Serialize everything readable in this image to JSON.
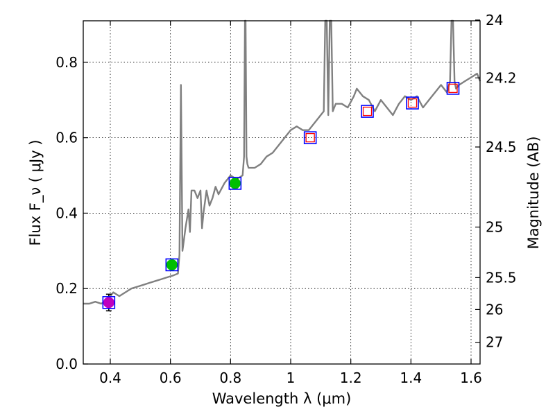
{
  "chart_data": {
    "type": "scatter",
    "xlabel": "Wavelength  λ (μm)",
    "ylabel": "Flux  F_ν  ( μJy )",
    "y2label": "Magnitude (AB)",
    "xlim": [
      0.31,
      1.63
    ],
    "ylim": [
      0.0,
      0.91
    ],
    "grid": true,
    "x_ticks": [
      {
        "value": 0.4,
        "label": "0.4"
      },
      {
        "value": 0.6,
        "label": "0.6"
      },
      {
        "value": 0.8,
        "label": "0.8"
      },
      {
        "value": 1.0,
        "label": "1"
      },
      {
        "value": 1.2,
        "label": "1.2"
      },
      {
        "value": 1.4,
        "label": "1.4"
      },
      {
        "value": 1.6,
        "label": "1.6"
      }
    ],
    "y_ticks": [
      {
        "value": 0.0,
        "label": "0.0"
      },
      {
        "value": 0.2,
        "label": "0.2"
      },
      {
        "value": 0.4,
        "label": "0.4"
      },
      {
        "value": 0.6,
        "label": "0.6"
      },
      {
        "value": 0.8,
        "label": "0.8"
      }
    ],
    "y2_ticks": [
      {
        "flux": 0.912,
        "label": "24"
      },
      {
        "flux": 0.7585,
        "label": "24.2"
      },
      {
        "flux": 0.5754,
        "label": "24.5"
      },
      {
        "flux": 0.3631,
        "label": "25"
      },
      {
        "flux": 0.2291,
        "label": "25.5"
      },
      {
        "flux": 0.1445,
        "label": "26"
      },
      {
        "flux": 0.0575,
        "label": "27"
      }
    ],
    "spectrum": {
      "color": "#808080",
      "x": [
        0.31,
        0.33,
        0.35,
        0.37,
        0.39,
        0.41,
        0.43,
        0.45,
        0.47,
        0.49,
        0.51,
        0.53,
        0.55,
        0.57,
        0.59,
        0.61,
        0.625,
        0.63,
        0.635,
        0.64,
        0.645,
        0.65,
        0.66,
        0.665,
        0.67,
        0.68,
        0.69,
        0.7,
        0.705,
        0.71,
        0.72,
        0.73,
        0.74,
        0.75,
        0.76,
        0.78,
        0.8,
        0.82,
        0.84,
        0.845,
        0.848,
        0.85,
        0.853,
        0.856,
        0.86,
        0.88,
        0.9,
        0.92,
        0.94,
        0.96,
        0.98,
        1.0,
        1.02,
        1.04,
        1.06,
        1.08,
        1.1,
        1.11,
        1.115,
        1.12,
        1.125,
        1.13,
        1.135,
        1.14,
        1.145,
        1.15,
        1.17,
        1.19,
        1.21,
        1.22,
        1.24,
        1.26,
        1.28,
        1.3,
        1.32,
        1.34,
        1.36,
        1.38,
        1.4,
        1.42,
        1.44,
        1.46,
        1.48,
        1.5,
        1.52,
        1.53,
        1.535,
        1.54,
        1.545,
        1.55,
        1.56,
        1.58,
        1.6,
        1.62,
        1.63
      ],
      "y": [
        0.16,
        0.16,
        0.165,
        0.16,
        0.17,
        0.19,
        0.18,
        0.19,
        0.2,
        0.205,
        0.21,
        0.215,
        0.22,
        0.225,
        0.23,
        0.235,
        0.24,
        0.29,
        0.74,
        0.3,
        0.33,
        0.36,
        0.41,
        0.35,
        0.46,
        0.46,
        0.44,
        0.46,
        0.36,
        0.4,
        0.46,
        0.42,
        0.44,
        0.47,
        0.45,
        0.48,
        0.5,
        0.49,
        0.5,
        0.55,
        0.95,
        0.95,
        0.55,
        0.53,
        0.52,
        0.52,
        0.53,
        0.55,
        0.56,
        0.58,
        0.6,
        0.62,
        0.63,
        0.62,
        0.62,
        0.64,
        0.66,
        0.67,
        0.95,
        0.95,
        0.66,
        0.95,
        0.95,
        0.67,
        0.68,
        0.69,
        0.69,
        0.68,
        0.71,
        0.73,
        0.71,
        0.7,
        0.67,
        0.7,
        0.68,
        0.66,
        0.69,
        0.71,
        0.7,
        0.71,
        0.68,
        0.7,
        0.72,
        0.74,
        0.72,
        0.75,
        0.95,
        0.95,
        0.75,
        0.73,
        0.74,
        0.75,
        0.76,
        0.77,
        0.75
      ]
    },
    "photometry": [
      {
        "x": 0.395,
        "y": 0.163,
        "err": 0.022,
        "square": "#0000ff",
        "fill": "#bf00bf",
        "marker": "circle"
      },
      {
        "x": 0.605,
        "y": 0.263,
        "err": 0.01,
        "square": "#0000ff",
        "fill": "#00bf00",
        "marker": "circle"
      },
      {
        "x": 0.815,
        "y": 0.479,
        "err": 0.012,
        "square": "#0000ff",
        "fill": "#00bf00",
        "marker": "circle"
      },
      {
        "x": 1.065,
        "y": 0.6,
        "err": 0.0,
        "square": "#0000ff",
        "fill": "#ff0000",
        "marker": "open-square"
      },
      {
        "x": 1.255,
        "y": 0.67,
        "err": 0.0,
        "square": "#0000ff",
        "fill": "#ff0000",
        "marker": "open-square"
      },
      {
        "x": 1.405,
        "y": 0.692,
        "err": 0.0,
        "square": "#0000ff",
        "fill": "#ff0000",
        "marker": "open-square"
      },
      {
        "x": 1.54,
        "y": 0.731,
        "err": 0.0,
        "square": "#0000ff",
        "fill": "#ff0000",
        "marker": "open-square"
      }
    ]
  }
}
